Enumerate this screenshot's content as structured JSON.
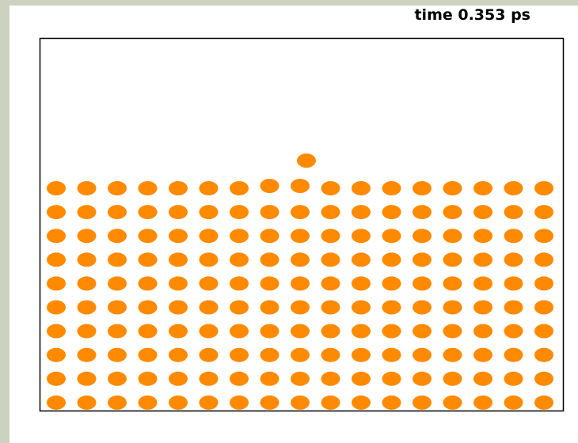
{
  "header": {
    "time_label": "time 0.353 ps"
  }
}
